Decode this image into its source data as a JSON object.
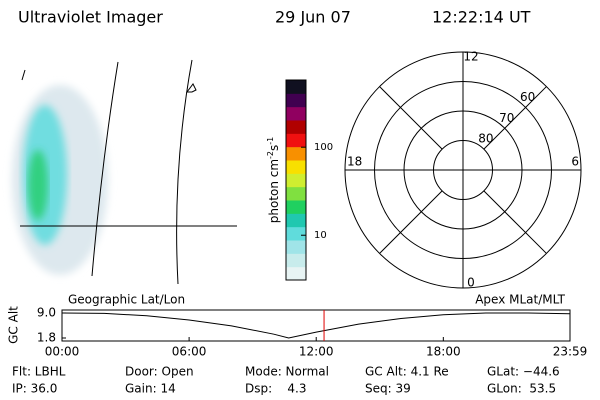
{
  "header": {
    "instrument": "Ultraviolet Imager",
    "date": "29 Jun 07",
    "time": "12:22:14 UT"
  },
  "colorbar": {
    "scale": "log",
    "lim": [
      3.1,
      580
    ],
    "ticks": [
      10,
      100
    ],
    "label": [
      "photon cm",
      "-2",
      "s",
      "-1"
    ],
    "colors": [
      "#e8f4f4",
      "#c8ecec",
      "#a0e4e8",
      "#60dcdc",
      "#20c8b0",
      "#20d060",
      "#80e040",
      "#d0ee30",
      "#f8e000",
      "#f89000",
      "#f01010",
      "#b00000",
      "#900060",
      "#400050",
      "#101020"
    ]
  },
  "polar": {
    "lat_range": [
      50,
      90
    ],
    "lat_ticks": [
      60,
      70,
      80
    ],
    "mlt_labels": [
      "12",
      "18",
      "6",
      "0"
    ]
  },
  "chart_data": {
    "type": "line",
    "title_left": "Geographic Lat/Lon",
    "title_right": "Apex MLat/MLT",
    "ylabel": "GC Alt",
    "x": [
      0,
      2,
      4,
      6,
      8,
      10,
      10.7,
      12,
      14,
      16,
      18,
      20,
      22,
      23.98
    ],
    "series": [
      {
        "name": "GC Alt",
        "color": "#000000",
        "values": [
          9.0,
          8.9,
          8.2,
          7.0,
          5.3,
          2.9,
          1.8,
          3.5,
          5.8,
          7.4,
          8.5,
          9.0,
          9.0,
          8.8
        ]
      }
    ],
    "ylim": [
      1.8,
      9.0
    ],
    "yticks": [
      {
        "value": 9.0,
        "label": "9.0"
      },
      1.8
    ],
    "xlim": [
      0,
      23.98
    ],
    "xticks": [
      {
        "value": 0,
        "label": "00:00"
      },
      {
        "value": 6,
        "label": "06:00"
      },
      {
        "value": 12,
        "label": "12:00"
      },
      {
        "value": 18,
        "label": "18:00"
      },
      {
        "value": 23.98,
        "label": "23:59"
      }
    ],
    "current_time": 12.37,
    "current_color": "#e00000"
  },
  "info": [
    [
      "Flt: LBHL",
      "Door: Open",
      "Mode: Normal",
      "GC Alt: 4.1 Re",
      "GLat: −44.6"
    ],
    [
      "IP: 36.0",
      "Gain: 14",
      "Dsp:    4.3",
      "Seq: 39",
      "GLon:  53.5"
    ]
  ]
}
